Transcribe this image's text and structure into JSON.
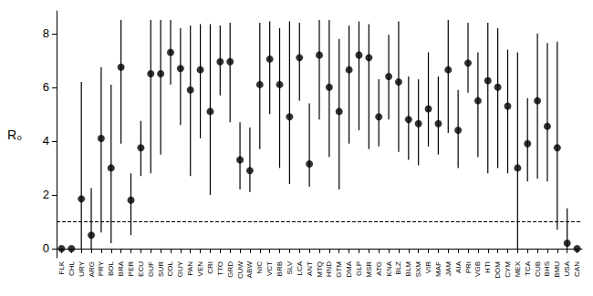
{
  "chart_data": {
    "type": "scatter",
    "y_label": "R₀",
    "categories": [
      "FLK",
      "CHL",
      "URY",
      "ARG",
      "PRY",
      "BOL",
      "BRA",
      "PER",
      "ECU",
      "GUF",
      "SUR",
      "COL",
      "GUY",
      "PAN",
      "VEN",
      "CRI",
      "TTO",
      "GRD",
      "CUW",
      "ABW",
      "NIC",
      "VCT",
      "BRB",
      "SLV",
      "LCA",
      "ANT",
      "MTQ",
      "HND",
      "GTM",
      "DMA",
      "GLP",
      "MSR",
      "ATG",
      "KNA",
      "BLZ",
      "BLM",
      "SXM",
      "VIR",
      "MAF",
      "JAM",
      "AIA",
      "PRI",
      "VGB",
      "HTI",
      "DOM",
      "CYM",
      "MEX",
      "TCA",
      "CUB",
      "BHS",
      "BMU",
      "USA",
      "CAN"
    ],
    "values": [
      0,
      0,
      1.85,
      0.5,
      4.1,
      3.0,
      6.75,
      1.8,
      3.75,
      6.5,
      6.5,
      7.3,
      6.7,
      5.9,
      6.65,
      5.1,
      6.95,
      6.95,
      3.3,
      2.9,
      6.1,
      7.05,
      6.1,
      4.9,
      7.1,
      3.15,
      7.2,
      6.0,
      5.1,
      6.65,
      7.2,
      7.1,
      4.9,
      6.4,
      6.2,
      4.8,
      4.65,
      5.2,
      4.65,
      6.65,
      4.4,
      6.9,
      5.5,
      6.25,
      6.0,
      5.3,
      3.0,
      3.9,
      5.5,
      4.55,
      3.75,
      0.2,
      0
    ],
    "lower": [
      null,
      null,
      0,
      0,
      0.6,
      0.2,
      3.9,
      0.5,
      2.7,
      2.8,
      3.5,
      6.1,
      4.6,
      2.7,
      4.1,
      2.0,
      5.7,
      4.7,
      2.2,
      2.1,
      3.7,
      5.0,
      3.0,
      2.4,
      5.5,
      2.3,
      4.8,
      3.4,
      2.2,
      3.9,
      4.4,
      3.7,
      3.8,
      4.8,
      3.6,
      3.3,
      3.1,
      3.8,
      3.5,
      4.3,
      3.0,
      5.8,
      3.4,
      2.8,
      3.0,
      2.8,
      0,
      2.5,
      2.6,
      2.5,
      0.7,
      0,
      null
    ],
    "upper": [
      null,
      null,
      6.2,
      2.25,
      6.75,
      6.1,
      8.5,
      2.8,
      4.75,
      8.5,
      8.5,
      8.5,
      8.2,
      8.3,
      8.35,
      8.35,
      8.3,
      8.4,
      4.7,
      4.5,
      8.4,
      8.45,
      8.2,
      8.45,
      8.4,
      5.4,
      8.5,
      8.5,
      7.8,
      8.3,
      8.45,
      8.35,
      6.3,
      7.95,
      8.45,
      6.4,
      6.3,
      7.3,
      6.4,
      8.5,
      5.9,
      8.4,
      7.3,
      8.4,
      8.2,
      7.4,
      7.3,
      5.6,
      8.0,
      7.65,
      7.7,
      1.5,
      null
    ],
    "reference_line": 1,
    "color": "#000000",
    "marker": "circle",
    "ylim": [
      -0.34,
      8.84
    ],
    "yticks": [
      0,
      2,
      4,
      6,
      8
    ],
    "grid": false
  }
}
